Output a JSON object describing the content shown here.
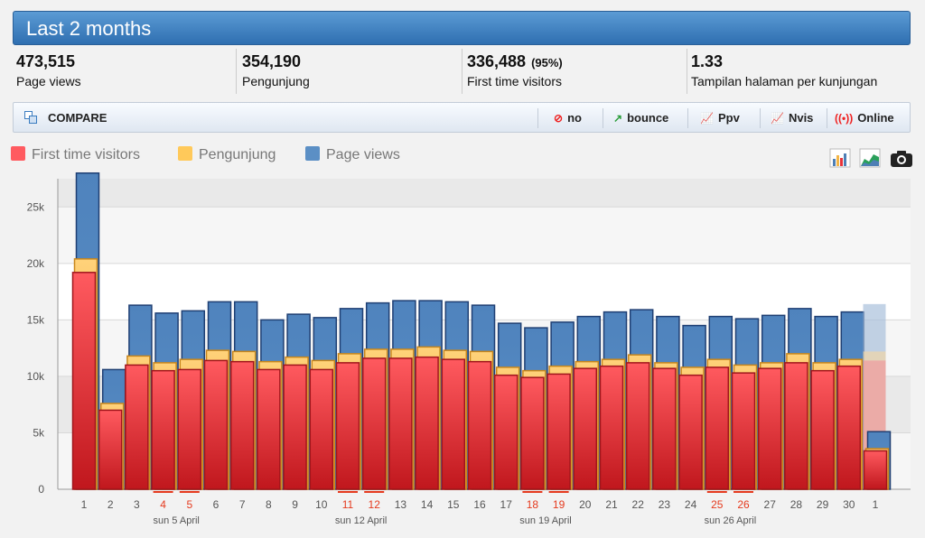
{
  "header": {
    "title": "Last 2 months"
  },
  "stats": [
    {
      "value": "473,515",
      "label": "Page views",
      "pct": ""
    },
    {
      "value": "354,190",
      "label": "Pengunjung",
      "pct": ""
    },
    {
      "value": "336,488",
      "label": "First time visitors",
      "pct": "(95%)"
    },
    {
      "value": "1.33",
      "label": "Tampilan halaman per kunjungan",
      "pct": ""
    }
  ],
  "toolbar": {
    "compare_label": "COMPARE",
    "no_label": "no",
    "bounce_label": "bounce",
    "ppv_label": "Ppv",
    "nvis_label": "Nvis",
    "online_label": "Online"
  },
  "legend": [
    "First time visitors",
    "Pengunjung",
    "Page views"
  ],
  "colors": {
    "first": "#e8333a",
    "visitors": "#f3b546",
    "views": "#4e7fb5",
    "weekend": "#e53a1e",
    "header": "#3a7cc0"
  },
  "icons": [
    "compare-icon",
    "no-icon",
    "bounce-icon",
    "ppv-icon",
    "nvis-icon",
    "online-icon",
    "bar-chart-icon",
    "area-chart-icon",
    "camera-icon"
  ],
  "chart_data": {
    "type": "bar",
    "categories": [
      "1",
      "2",
      "3",
      "4",
      "5",
      "6",
      "7",
      "8",
      "9",
      "10",
      "11",
      "12",
      "13",
      "14",
      "15",
      "16",
      "17",
      "18",
      "19",
      "20",
      "21",
      "22",
      "23",
      "24",
      "25",
      "26",
      "27",
      "28",
      "29",
      "30",
      "1"
    ],
    "weekend": [
      false,
      false,
      false,
      true,
      true,
      false,
      false,
      false,
      false,
      false,
      true,
      true,
      false,
      false,
      false,
      false,
      false,
      true,
      true,
      false,
      false,
      false,
      false,
      false,
      true,
      true,
      false,
      false,
      false,
      false,
      false
    ],
    "week_labels": [
      {
        "after": "4",
        "text": "sun 5 April"
      },
      {
        "after": "11",
        "text": "sun 12 April"
      },
      {
        "after": "18",
        "text": "sun 19 April"
      },
      {
        "after": "25",
        "text": "sun 26 April"
      }
    ],
    "series": [
      {
        "name": "First time visitors",
        "values": [
          19200,
          7000,
          11000,
          10500,
          10600,
          11400,
          11300,
          10600,
          11000,
          10600,
          11200,
          11600,
          11600,
          11700,
          11500,
          11300,
          10100,
          9900,
          10200,
          10700,
          10900,
          11200,
          10700,
          10100,
          10800,
          10300,
          10700,
          11200,
          10500,
          10900,
          3400
        ]
      },
      {
        "name": "Pengunjung",
        "values": [
          20400,
          7600,
          11800,
          11200,
          11500,
          12300,
          12200,
          11300,
          11700,
          11400,
          12000,
          12400,
          12400,
          12600,
          12300,
          12200,
          10800,
          10500,
          10900,
          11300,
          11500,
          11900,
          11200,
          10800,
          11500,
          11000,
          11200,
          12000,
          11200,
          11500,
          3600
        ]
      },
      {
        "name": "Page views",
        "values": [
          28000,
          10600,
          16300,
          15600,
          15800,
          16600,
          16600,
          15000,
          15500,
          15200,
          16000,
          16500,
          16700,
          16700,
          16600,
          16300,
          14700,
          14300,
          14800,
          15300,
          15700,
          15900,
          15300,
          14500,
          15300,
          15100,
          15400,
          16000,
          15300,
          15700,
          5100
        ]
      }
    ],
    "ghost": {
      "first": 11400,
      "visitors": 12200,
      "views": 16400
    },
    "yticks": [
      "0",
      "5k",
      "10k",
      "15k",
      "20k",
      "25k"
    ],
    "ylim": [
      0,
      27500
    ]
  }
}
